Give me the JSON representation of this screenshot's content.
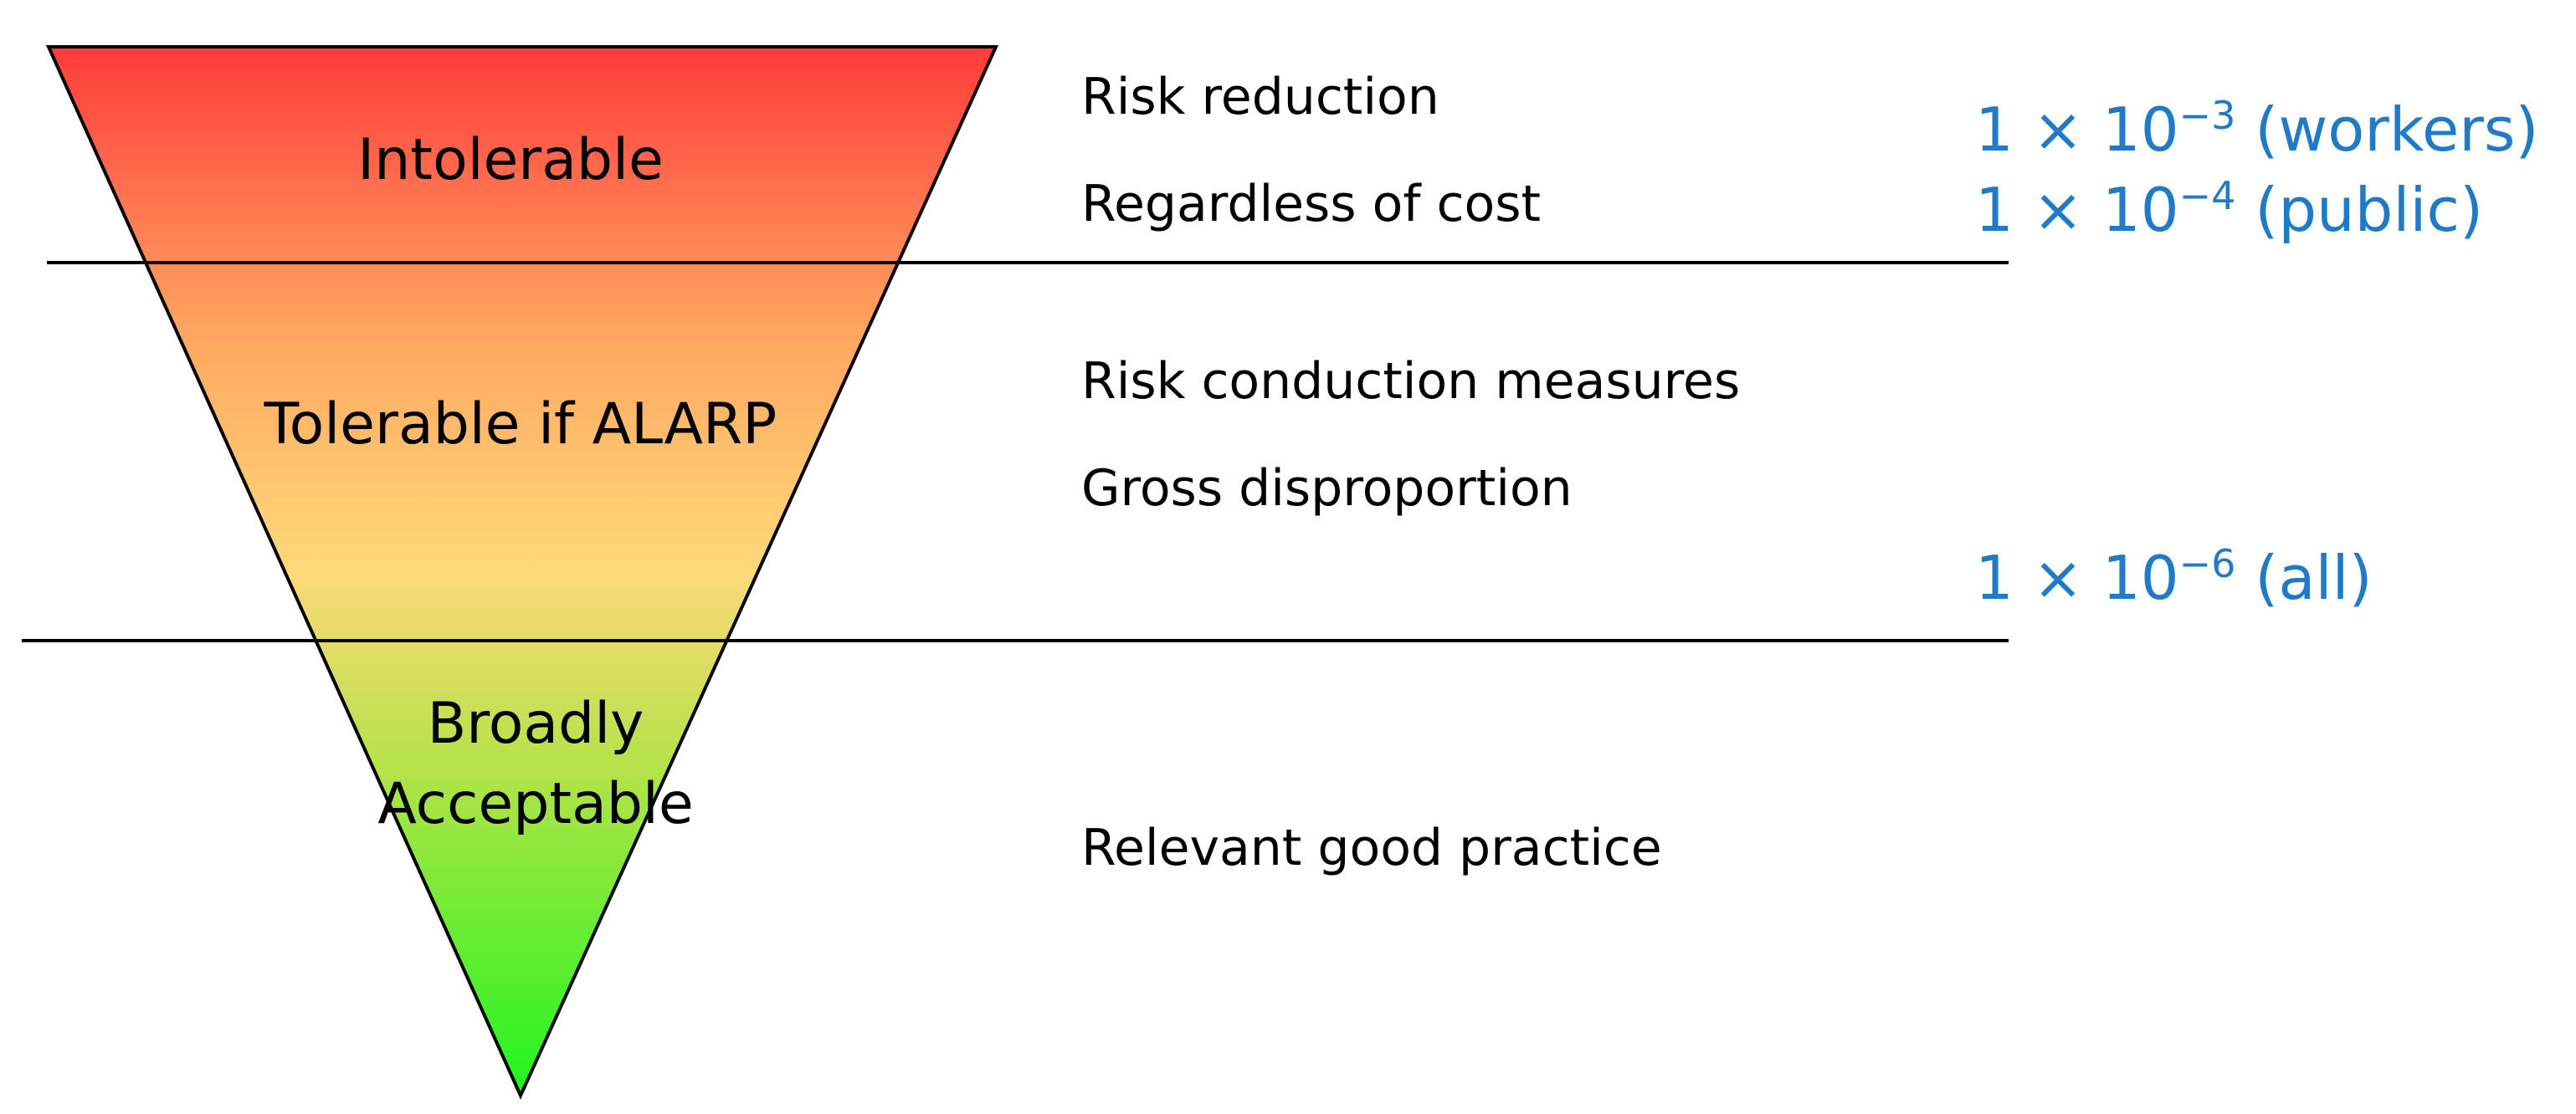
{
  "zones": [
    {
      "label": "Intolerable"
    },
    {
      "label": "Tolerable if ALARP"
    },
    {
      "label_line1": "Broadly",
      "label_line2": "Acceptable"
    }
  ],
  "descriptions": {
    "intolerable": [
      "Risk reduction",
      "Regardless of cost"
    ],
    "alarp": [
      "Risk conduction measures",
      "Gross disproportion"
    ],
    "acceptable": [
      "Relevant good practice"
    ]
  },
  "thresholds": [
    {
      "base": "1 × 10",
      "exponent": "−3",
      "group": " (workers)"
    },
    {
      "base": "1 × 10",
      "exponent": "−4",
      "group": " (public)"
    },
    {
      "base": "1 × 10",
      "exponent": "−6",
      "group": " (all)"
    }
  ],
  "colors": {
    "top": "#ff3b3b",
    "upper_mid": "#ffa861",
    "middle": "#fdd97a",
    "lower_mid": "#b8e24a",
    "bottom": "#1ff51f",
    "threshold_text": "#1f7ac8",
    "lines": "#000000"
  }
}
